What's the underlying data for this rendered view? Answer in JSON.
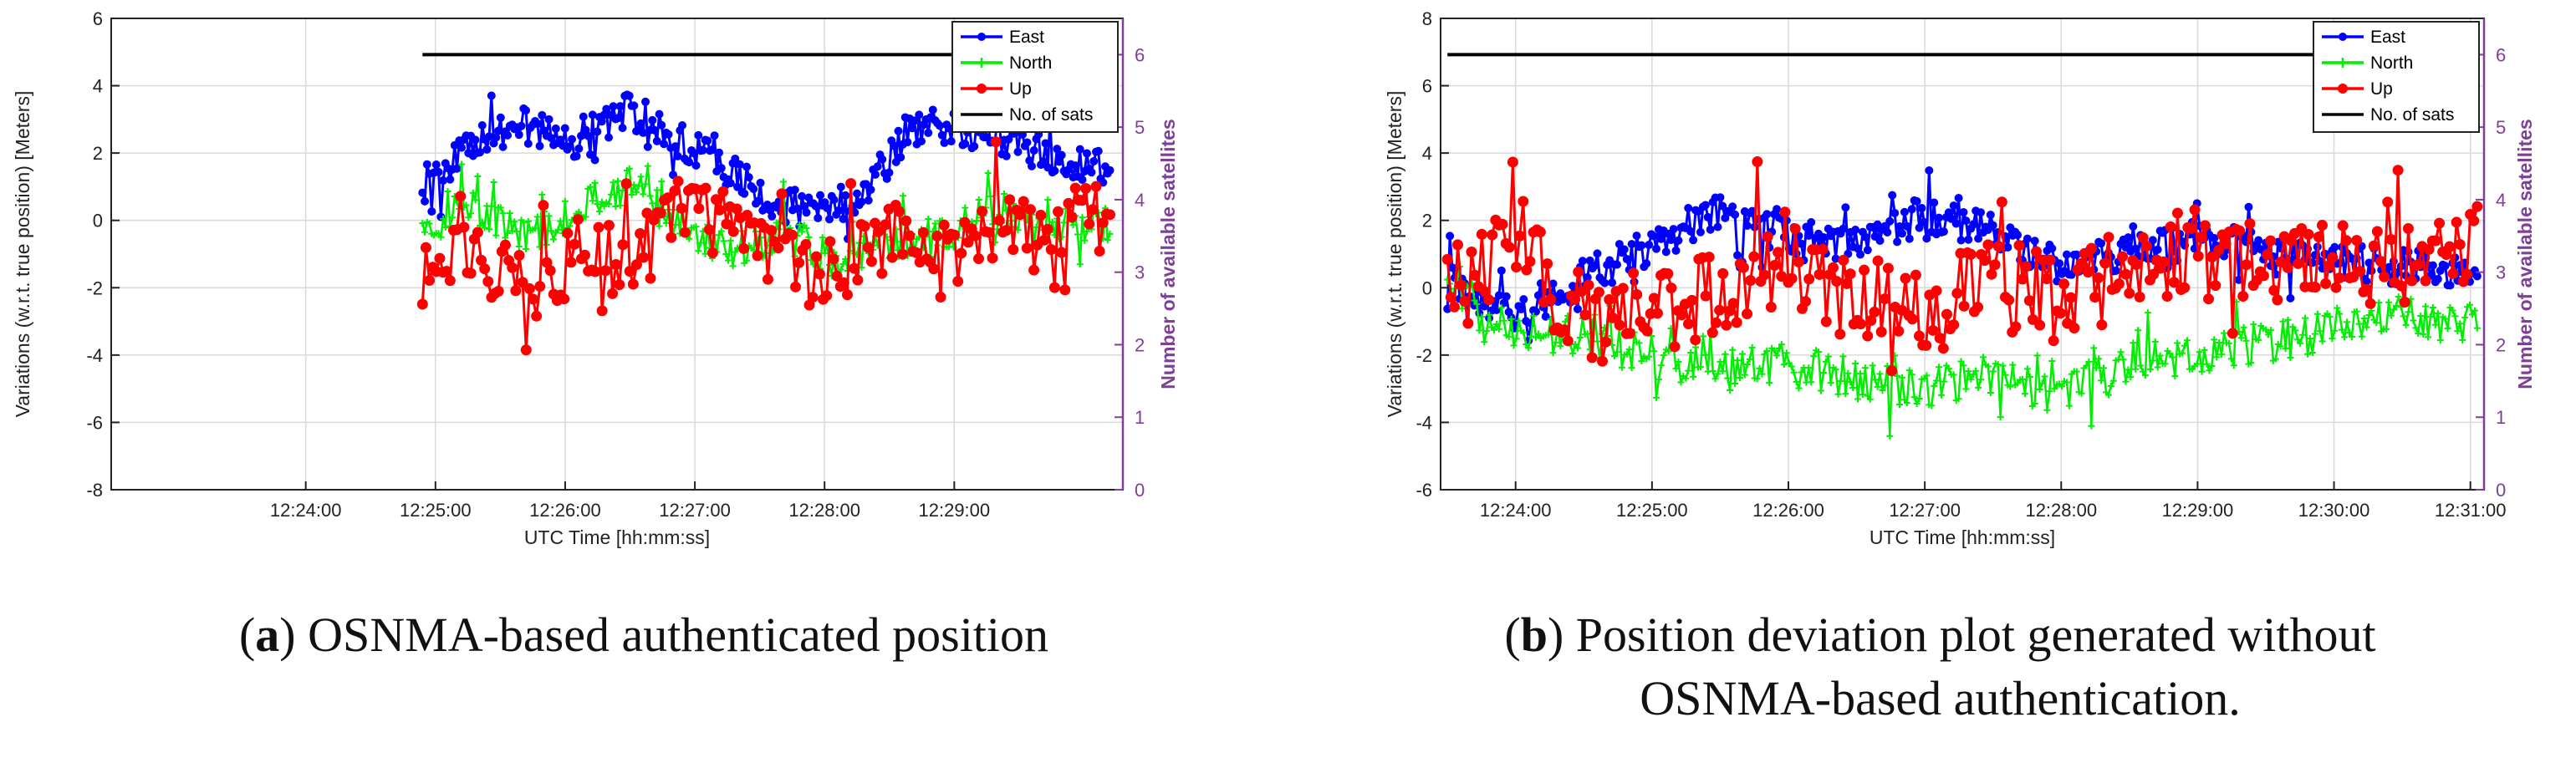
{
  "chart_data": [
    {
      "type": "line",
      "panel": "a",
      "caption_letter": "a",
      "caption": "OSNMA-based authenticated position",
      "xlabel": "UTC Time [hh:mm:ss]",
      "ylabel": "Variations (w.r.t. true position) [Meters]",
      "ylabel_right": "Number of available satellites",
      "ylim": [
        -8,
        6
      ],
      "yticks": [
        "-8",
        "-6",
        "-4",
        "-2",
        "0",
        "2",
        "4",
        "6"
      ],
      "ylim_right": [
        0,
        6.5
      ],
      "yticks_right": [
        "0",
        "1",
        "2",
        "3",
        "4",
        "5",
        "6"
      ],
      "xlim_min": [
        -1.5,
        6.3
      ],
      "xticks": [
        "12:24:00",
        "12:25:00",
        "12:26:00",
        "12:27:00",
        "12:28:00",
        "12:29:00"
      ],
      "data_range_min": [
        0.9,
        6.2
      ],
      "legend": [
        "East",
        "North",
        "Up",
        "No. of sats"
      ],
      "legend_position": "top-right",
      "grid": true,
      "colors": {
        "east": "#0000ff",
        "north": "#00ee00",
        "up": "#ff0000",
        "sats": "#000000",
        "right_axis": "#7f3f98"
      },
      "series": [
        {
          "name": "East",
          "anchors": [
            [
              0.9,
              1.0
            ],
            [
              1.3,
              2.3
            ],
            [
              1.7,
              2.8
            ],
            [
              2.1,
              2.2
            ],
            [
              2.5,
              3.3
            ],
            [
              2.8,
              2.6
            ],
            [
              3.2,
              1.6
            ],
            [
              3.6,
              0.5
            ],
            [
              4.0,
              0.3
            ],
            [
              4.3,
              0.8
            ],
            [
              4.6,
              2.4
            ],
            [
              4.9,
              3.0
            ],
            [
              5.2,
              2.5
            ],
            [
              5.5,
              2.3
            ],
            [
              5.8,
              1.8
            ],
            [
              6.2,
              1.5
            ]
          ],
          "noise": 0.55,
          "n": 300
        },
        {
          "name": "North",
          "anchors": [
            [
              0.9,
              -0.3
            ],
            [
              1.3,
              0.5
            ],
            [
              1.7,
              -0.6
            ],
            [
              2.1,
              0.4
            ],
            [
              2.5,
              1.0
            ],
            [
              2.9,
              -0.2
            ],
            [
              3.3,
              -0.9
            ],
            [
              3.7,
              -0.4
            ],
            [
              4.1,
              -1.2
            ],
            [
              4.5,
              -0.6
            ],
            [
              4.9,
              -0.4
            ],
            [
              5.3,
              0.3
            ],
            [
              5.7,
              0.1
            ],
            [
              6.2,
              -0.2
            ]
          ],
          "noise": 0.55,
          "n": 300
        },
        {
          "name": "Up",
          "anchors": [
            [
              0.9,
              -1.5
            ],
            [
              1.3,
              -0.8
            ],
            [
              1.7,
              -2.3
            ],
            [
              2.1,
              -0.8
            ],
            [
              2.5,
              -1.5
            ],
            [
              2.9,
              0.5
            ],
            [
              3.3,
              -0.3
            ],
            [
              3.7,
              -1.2
            ],
            [
              4.1,
              -1.7
            ],
            [
              4.5,
              -0.4
            ],
            [
              4.9,
              -1.2
            ],
            [
              5.3,
              -0.2
            ],
            [
              5.7,
              -0.5
            ],
            [
              6.2,
              0.3
            ]
          ],
          "noise": 1.1,
          "n": 200
        },
        {
          "name": "No. of sats",
          "x": [
            0.9,
            6.2
          ],
          "values": [
            6,
            6
          ]
        }
      ]
    },
    {
      "type": "line",
      "panel": "b",
      "caption_letter": "b",
      "caption": "Position deviation plot generated without OSNMA-based authentication.",
      "caption_lines": [
        "Position deviation plot generated without",
        "OSNMA-based authentication."
      ],
      "xlabel": "UTC Time [hh:mm:ss]",
      "ylabel": "Variations (w.r.t. true position) [Meters]",
      "ylabel_right": "Number of available satellites",
      "ylim": [
        -6,
        8
      ],
      "yticks": [
        "-6",
        "-4",
        "-2",
        "0",
        "2",
        "4",
        "6",
        "8"
      ],
      "ylim_right": [
        0,
        6.5
      ],
      "yticks_right": [
        "0",
        "1",
        "2",
        "3",
        "4",
        "5",
        "6"
      ],
      "xlim_min": [
        -0.55,
        7.1
      ],
      "xticks": [
        "12:24:00",
        "12:25:00",
        "12:26:00",
        "12:27:00",
        "12:28:00",
        "12:29:00",
        "12:30:00",
        "12:31:00"
      ],
      "data_range_min": [
        -0.5,
        7.05
      ],
      "legend": [
        "East",
        "North",
        "Up",
        "No. of sats"
      ],
      "legend_position": "top-right",
      "grid": true,
      "colors": {
        "east": "#0000ff",
        "north": "#00ee00",
        "up": "#ff0000",
        "sats": "#000000",
        "right_axis": "#7f3f98"
      },
      "series": [
        {
          "name": "East",
          "anchors": [
            [
              -0.5,
              0.3
            ],
            [
              0.0,
              -0.8
            ],
            [
              0.5,
              0.3
            ],
            [
              1.0,
              1.2
            ],
            [
              1.5,
              2.2
            ],
            [
              2.0,
              1.5
            ],
            [
              2.5,
              1.2
            ],
            [
              3.0,
              2.2
            ],
            [
              3.5,
              1.6
            ],
            [
              4.0,
              0.6
            ],
            [
              4.5,
              1.0
            ],
            [
              5.0,
              1.5
            ],
            [
              5.5,
              1.2
            ],
            [
              6.0,
              0.8
            ],
            [
              6.5,
              0.6
            ],
            [
              7.05,
              0.4
            ]
          ],
          "noise": 0.55,
          "n": 420
        },
        {
          "name": "North",
          "anchors": [
            [
              -0.5,
              0.0
            ],
            [
              0.0,
              -1.2
            ],
            [
              0.5,
              -1.5
            ],
            [
              1.0,
              -2.0
            ],
            [
              1.5,
              -2.5
            ],
            [
              2.0,
              -2.2
            ],
            [
              2.5,
              -2.8
            ],
            [
              3.0,
              -3.0
            ],
            [
              3.5,
              -2.6
            ],
            [
              4.0,
              -3.2
            ],
            [
              4.5,
              -2.2
            ],
            [
              5.0,
              -2.0
            ],
            [
              5.5,
              -1.6
            ],
            [
              6.0,
              -1.3
            ],
            [
              6.5,
              -0.8
            ],
            [
              7.05,
              -1.0
            ]
          ],
          "noise": 0.6,
          "n": 420
        },
        {
          "name": "Up",
          "anchors": [
            [
              -0.5,
              0.2
            ],
            [
              0.0,
              1.2
            ],
            [
              0.5,
              -1.0
            ],
            [
              1.0,
              -0.6
            ],
            [
              1.5,
              -0.2
            ],
            [
              2.0,
              0.8
            ],
            [
              2.5,
              -0.3
            ],
            [
              3.0,
              -0.8
            ],
            [
              3.5,
              0.2
            ],
            [
              4.0,
              -0.4
            ],
            [
              4.5,
              0.5
            ],
            [
              5.0,
              1.2
            ],
            [
              5.5,
              0.6
            ],
            [
              6.0,
              1.0
            ],
            [
              6.5,
              0.5
            ],
            [
              7.05,
              1.2
            ]
          ],
          "noise": 1.3,
          "n": 300
        },
        {
          "name": "No. of sats",
          "x": [
            -0.5,
            7.05
          ],
          "values": [
            6,
            6
          ]
        }
      ]
    }
  ]
}
